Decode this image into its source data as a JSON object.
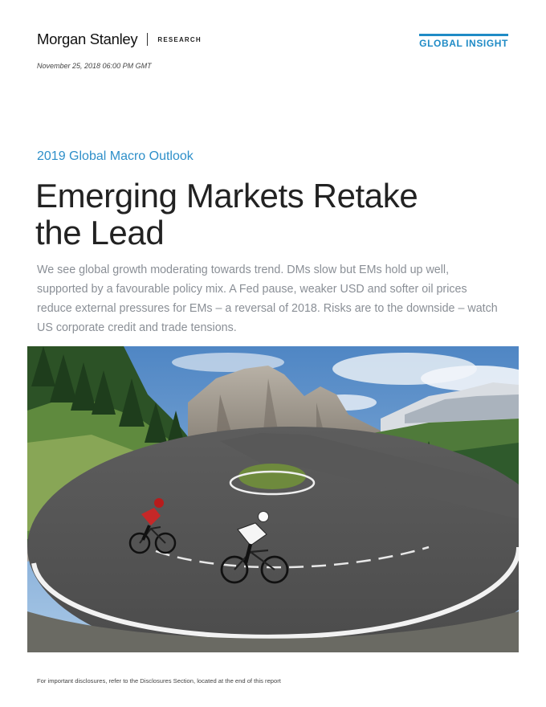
{
  "header": {
    "brand_name": "Morgan Stanley",
    "section": "RESEARCH",
    "series_label": "GLOBAL INSIGHT",
    "date": "November 25, 2018 06:00 PM GMT"
  },
  "report": {
    "kicker": "2019 Global Macro Outlook",
    "title_line1": "Emerging Markets Retake",
    "title_line2": "the Lead",
    "summary": "We see global growth moderating towards trend. DMs slow but EMs hold up well, supported by a favourable policy mix. A Fed pause, weaker USD and softer oil prices reduce external pressures for EMs – a reversal of 2018. Risks are to the downside – watch US corporate credit and trade tensions."
  },
  "hero_image": {
    "subject": "cyclists-on-mountain-hairpin-road"
  },
  "footer": {
    "disclosure_note": "For important disclosures, refer to the Disclosures Section, located at the end of this report"
  },
  "colors": {
    "accent_blue": "#1f8bc6",
    "kicker_blue": "#2e8fc9",
    "deck_gray": "#8a8f96"
  }
}
